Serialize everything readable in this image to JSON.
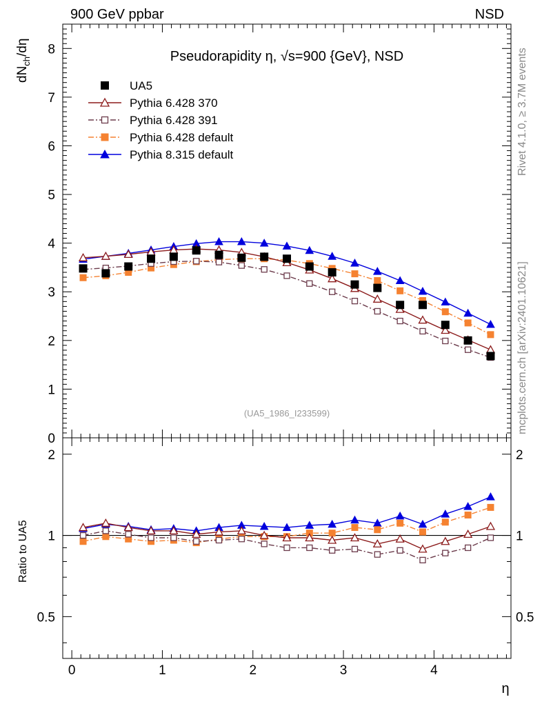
{
  "header": {
    "left": "900 GeV ppbar",
    "right": "NSD"
  },
  "side_text": {
    "top": "Rivet 4.1.0, ≥ 3.7M events",
    "bottom": "mcplots.cern.ch [arXiv:2401.10621]"
  },
  "chart_data": {
    "type": "scatter",
    "title": "Pseudorapidity η, √s=900 {GeV}, NSD",
    "xlabel": "η",
    "ylabel": "dN_ch/dη",
    "ratio_ylabel": "Ratio to UA5",
    "xlim": [
      -0.1,
      4.85
    ],
    "ylim": [
      0,
      8.5
    ],
    "ratio_ylim": [
      0.35,
      2.3
    ],
    "x_ticks": [
      "0",
      "1",
      "2",
      "3",
      "4"
    ],
    "y_ticks": [
      "0",
      "1",
      "2",
      "3",
      "4",
      "5",
      "6",
      "7",
      "8"
    ],
    "ratio_ticks": [
      "0.5",
      "1",
      "2"
    ],
    "watermark": "(UA5_1986_I233599)",
    "x": [
      0.125,
      0.375,
      0.625,
      0.875,
      1.125,
      1.375,
      1.625,
      1.875,
      2.125,
      2.375,
      2.625,
      2.875,
      3.125,
      3.375,
      3.625,
      3.875,
      4.125,
      4.375,
      4.625
    ],
    "series": [
      {
        "name": "UA5",
        "color": "#000000",
        "marker": "filled-square",
        "line": "none",
        "values": [
          3.48,
          3.38,
          3.52,
          3.68,
          3.72,
          3.85,
          3.76,
          3.7,
          3.72,
          3.68,
          3.52,
          3.4,
          3.15,
          3.08,
          2.73,
          2.73,
          2.32,
          2.0,
          1.68
        ]
      },
      {
        "name": "Pythia 6.428 370",
        "color": "#8b1a1a",
        "marker": "open-triangle",
        "line": "solid",
        "values": [
          3.7,
          3.73,
          3.77,
          3.82,
          3.86,
          3.88,
          3.86,
          3.81,
          3.72,
          3.6,
          3.45,
          3.27,
          3.07,
          2.85,
          2.64,
          2.42,
          2.21,
          2.01,
          1.81
        ]
      },
      {
        "name": "Pythia 6.428 391",
        "color": "#6b3a4a",
        "marker": "open-square",
        "line": "dashdot",
        "values": [
          3.46,
          3.49,
          3.53,
          3.58,
          3.62,
          3.63,
          3.61,
          3.54,
          3.46,
          3.33,
          3.17,
          3.0,
          2.81,
          2.6,
          2.4,
          2.19,
          1.99,
          1.81,
          1.65
        ]
      },
      {
        "name": "Pythia 6.428 default",
        "color": "#f58231",
        "marker": "filled-square",
        "line": "dashdot",
        "values": [
          3.29,
          3.33,
          3.4,
          3.49,
          3.56,
          3.62,
          3.66,
          3.68,
          3.68,
          3.65,
          3.58,
          3.48,
          3.37,
          3.23,
          3.02,
          2.82,
          2.59,
          2.36,
          2.12
        ]
      },
      {
        "name": "Pythia 8.315 default",
        "color": "#0000dd",
        "marker": "filled-triangle",
        "line": "solid",
        "values": [
          3.67,
          3.73,
          3.79,
          3.86,
          3.93,
          3.99,
          4.03,
          4.03,
          4.0,
          3.94,
          3.85,
          3.73,
          3.59,
          3.42,
          3.23,
          3.01,
          2.79,
          2.56,
          2.33
        ]
      }
    ],
    "ratio_series": [
      {
        "name": "UA5",
        "values": [
          1.0,
          1.0,
          1.0,
          1.0,
          1.0,
          1.0,
          1.0,
          1.0,
          1.0,
          1.0,
          1.0,
          1.0,
          1.0,
          1.0,
          1.0,
          1.0,
          1.0,
          1.0,
          1.0
        ]
      },
      {
        "name": "Pythia 6.428 370",
        "values": [
          1.07,
          1.11,
          1.07,
          1.04,
          1.04,
          1.01,
          1.03,
          1.04,
          1.0,
          0.98,
          0.98,
          0.96,
          0.98,
          0.93,
          0.97,
          0.89,
          0.95,
          1.01,
          1.08
        ]
      },
      {
        "name": "Pythia 6.428 391",
        "values": [
          1.0,
          1.04,
          1.01,
          0.98,
          0.98,
          0.95,
          0.96,
          0.97,
          0.93,
          0.9,
          0.9,
          0.88,
          0.89,
          0.85,
          0.88,
          0.81,
          0.86,
          0.9,
          0.98
        ]
      },
      {
        "name": "Pythia 6.428 default",
        "values": [
          0.95,
          0.99,
          0.97,
          0.95,
          0.96,
          0.94,
          0.97,
          0.99,
          0.99,
          0.99,
          1.02,
          1.02,
          1.07,
          1.05,
          1.11,
          1.03,
          1.12,
          1.19,
          1.27
        ]
      },
      {
        "name": "Pythia 8.315 default",
        "values": [
          1.06,
          1.1,
          1.08,
          1.05,
          1.06,
          1.04,
          1.07,
          1.09,
          1.08,
          1.07,
          1.09,
          1.1,
          1.14,
          1.11,
          1.18,
          1.1,
          1.2,
          1.28,
          1.39
        ]
      }
    ]
  }
}
